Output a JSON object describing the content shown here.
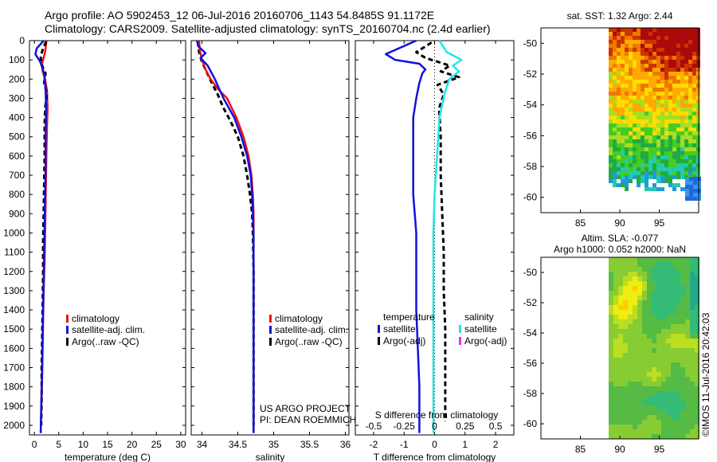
{
  "header": {
    "title_line1": "Argo profile: AO 5902453_12 06-Jul-2016 20160706_1143 54.8485S 91.1172E",
    "title_line2": "Climatology: CARS2009. Satellite-adjusted climatology: synTS_20160704.nc (2.4d earlier)"
  },
  "credit": {
    "project_line1": "US ARGO PROJECT",
    "project_line2": "PI: DEAN ROEMMICH",
    "stamp": "©IMOS 11-Jul-2016 20:42:03"
  },
  "colors": {
    "climatology": "#ee1111",
    "satellite": "#1111dd",
    "argo": "#000000",
    "salinity_sat": "#22e5e5",
    "salinity_argo": "#ff22ff"
  },
  "chart_data": [
    {
      "id": "temperature",
      "type": "line",
      "xlabel": "temperature (deg C)",
      "ylabel": "",
      "xlim": [
        -1,
        31
      ],
      "ylim": [
        2050,
        0
      ],
      "xticks": [
        0,
        5,
        10,
        15,
        20,
        25,
        30
      ],
      "xtick_labels": [
        "0",
        "5",
        "10",
        "15",
        "20",
        "25",
        "30"
      ],
      "yticks": [
        0,
        100,
        200,
        300,
        400,
        500,
        600,
        700,
        800,
        900,
        1000,
        1100,
        1200,
        1300,
        1400,
        1500,
        1600,
        1700,
        1800,
        1900,
        2000
      ],
      "ytick_labels": [
        "0",
        "100",
        "200",
        "300",
        "400",
        "500",
        "600",
        "700",
        "800",
        "900",
        "1000",
        "1100",
        "1200",
        "1300",
        "1400",
        "1500",
        "1600",
        "1700",
        "1800",
        "1900",
        "2000"
      ],
      "legend": [
        "climatology",
        "satellite-adj. clim.",
        "Argo(..raw -QC)"
      ],
      "series": [
        {
          "name": "climatology",
          "style": "solid",
          "color_key": "climatology",
          "x": [
            2.5,
            2.2,
            1.6,
            1.7,
            2.2,
            2.6,
            2.7,
            2.6,
            2.5,
            2.4,
            2.3,
            2.2,
            2.1,
            1.9,
            1.8,
            1.7,
            1.6,
            1.5,
            1.4,
            1.3
          ],
          "y": [
            0,
            60,
            120,
            160,
            200,
            260,
            350,
            450,
            550,
            700,
            850,
            1000,
            1150,
            1300,
            1450,
            1600,
            1750,
            1850,
            1950,
            2040
          ]
        },
        {
          "name": "satellite-adj. clim.",
          "style": "solid",
          "color_key": "satellite",
          "x": [
            1.9,
            0.5,
            0.2,
            1.2,
            2.0,
            2.3,
            2.4,
            2.3,
            2.3,
            2.2,
            2.1,
            2.0,
            1.9,
            1.8,
            1.7,
            1.6,
            1.5,
            1.4,
            1.3
          ],
          "y": [
            0,
            40,
            70,
            110,
            170,
            250,
            350,
            500,
            650,
            800,
            950,
            1100,
            1250,
            1400,
            1550,
            1700,
            1800,
            1900,
            2040
          ]
        },
        {
          "name": "Argo(..raw -QC)",
          "style": "dashed",
          "color_key": "argo",
          "x": [
            2.4,
            1.8,
            1.3,
            1.4,
            2.3,
            2.0,
            2.6,
            2.2,
            2.1,
            2.1,
            2.0,
            1.9,
            1.8,
            1.8,
            1.7,
            1.6,
            1.5,
            1.5,
            1.4
          ],
          "y": [
            5,
            40,
            80,
            120,
            170,
            220,
            280,
            350,
            450,
            600,
            750,
            900,
            1050,
            1200,
            1400,
            1550,
            1700,
            1850,
            2000
          ]
        }
      ]
    },
    {
      "id": "salinity",
      "type": "line",
      "xlabel": "salinity",
      "xlim": [
        33.85,
        36.05
      ],
      "ylim": [
        2050,
        0
      ],
      "xticks": [
        34,
        34.5,
        35,
        35.5,
        36
      ],
      "xtick_labels": [
        "34",
        "34.5",
        "35",
        "35.5",
        "36"
      ],
      "legend": [
        "climatology",
        "satellite-adj. clim.",
        "Argo(..raw -QC)"
      ],
      "series": [
        {
          "name": "climatology",
          "style": "solid",
          "color_key": "climatology",
          "x": [
            33.96,
            33.97,
            34.0,
            34.05,
            34.12,
            34.22,
            34.35,
            34.48,
            34.58,
            34.65,
            34.69,
            34.71,
            34.72,
            34.72,
            34.72,
            34.72,
            34.72
          ],
          "y": [
            0,
            50,
            100,
            150,
            200,
            250,
            300,
            400,
            500,
            600,
            700,
            800,
            900,
            1000,
            1200,
            1600,
            2040
          ]
        },
        {
          "name": "satellite-adj. clim.",
          "style": "solid",
          "color_key": "satellite",
          "x": [
            33.93,
            33.95,
            34.05,
            33.98,
            34.08,
            34.18,
            34.3,
            34.45,
            34.55,
            34.63,
            34.68,
            34.7,
            34.71,
            34.72,
            34.72,
            34.72,
            34.72
          ],
          "y": [
            0,
            30,
            65,
            90,
            130,
            200,
            300,
            400,
            500,
            600,
            700,
            800,
            900,
            1000,
            1200,
            1600,
            2040
          ]
        },
        {
          "name": "Argo(..raw -QC)",
          "style": "dashed",
          "color_key": "argo",
          "x": [
            33.94,
            33.96,
            34.0,
            34.05,
            34.1,
            34.15,
            34.22,
            34.3,
            34.4,
            34.5,
            34.58,
            34.63,
            34.67,
            34.7,
            34.71,
            34.72,
            34.72,
            34.72
          ],
          "y": [
            5,
            60,
            110,
            150,
            190,
            230,
            280,
            350,
            420,
            500,
            600,
            700,
            800,
            900,
            1000,
            1200,
            1600,
            2000
          ]
        }
      ]
    },
    {
      "id": "difference",
      "type": "line",
      "xlabel": "T difference from climatology",
      "x2label": "S difference from climatology",
      "xlim": [
        -2.6,
        2.6
      ],
      "ylim": [
        2050,
        0
      ],
      "xticks": [
        -2,
        -1,
        0,
        1,
        2
      ],
      "xtick_labels": [
        "-2",
        "-1",
        "0",
        "1",
        "2"
      ],
      "x2ticks": [
        -0.5,
        -0.25,
        0,
        0.25,
        0.5
      ],
      "x2tick_labels": [
        "-0.5",
        "-0.25",
        "0",
        "0.25",
        "0.5"
      ],
      "legend_titles": [
        "temperature",
        "salinity"
      ],
      "legend_temperature": [
        "satellite",
        "Argo(-adj)"
      ],
      "legend_salinity": [
        "satellite",
        "Argo(-adj)"
      ],
      "series": [
        {
          "name": "T satellite",
          "style": "solid",
          "color_key": "satellite",
          "x": [
            -0.6,
            -1.6,
            -1.3,
            -0.5,
            -0.3,
            -0.4,
            -0.5,
            -0.6,
            -0.7,
            -0.7,
            -0.7,
            -0.6,
            -0.6,
            -0.6,
            -0.55,
            -0.5,
            -0.5,
            -0.5
          ],
          "y": [
            0,
            70,
            100,
            120,
            150,
            170,
            220,
            300,
            400,
            600,
            800,
            1000,
            1200,
            1400,
            1600,
            1800,
            1900,
            2040
          ]
        },
        {
          "name": "T Argo(-adj)",
          "style": "dashed",
          "color_key": "argo",
          "x": [
            -0.1,
            -0.6,
            -0.3,
            0.5,
            0.2,
            0.8,
            0.1,
            0.3,
            0.15,
            0.2,
            0.2,
            0.25,
            0.3,
            0.3,
            0.35,
            0.35,
            0.35,
            0.35
          ],
          "y": [
            10,
            60,
            90,
            130,
            160,
            190,
            230,
            280,
            350,
            500,
            700,
            900,
            1100,
            1300,
            1500,
            1700,
            1850,
            1980
          ]
        },
        {
          "name": "S satellite",
          "style": "solid",
          "color_key": "salinity_sat",
          "x": [
            0.04,
            0.1,
            0.22,
            0.15,
            0.2,
            0.12,
            0.08,
            0.04,
            0.02,
            0.0,
            -0.01,
            -0.01,
            -0.01,
            -0.01,
            -0.01
          ],
          "y": [
            0,
            60,
            100,
            130,
            160,
            200,
            280,
            400,
            600,
            800,
            1000,
            1200,
            1400,
            1700,
            2040
          ]
        }
      ]
    },
    {
      "id": "sst-map",
      "type": "heatmap",
      "title": "sat. SST: 1.32 Argo: 2.44",
      "xlim": [
        80,
        100
      ],
      "ylim": [
        -61,
        -49
      ],
      "xticks": [
        85,
        90,
        95
      ],
      "xtick_labels": [
        "85",
        "90",
        "95"
      ],
      "yticks": [
        -50,
        -52,
        -54,
        -56,
        -58,
        -60
      ],
      "ytick_labels": [
        "-50",
        "-52",
        "-54",
        "-56",
        "-58",
        "-60"
      ]
    },
    {
      "id": "sla-map",
      "type": "heatmap",
      "title_line1": "Altim. SLA: -0.077",
      "title_line2": "Argo h1000: 0.052 h2000: NaN",
      "xlim": [
        80,
        100
      ],
      "ylim": [
        -61,
        -49
      ],
      "xticks": [
        85,
        90,
        95
      ],
      "xtick_labels": [
        "85",
        "90",
        "95"
      ],
      "yticks": [
        -50,
        -52,
        -54,
        -56,
        -58,
        -60
      ],
      "ytick_labels": [
        "-50",
        "-52",
        "-54",
        "-56",
        "-58",
        "-60"
      ]
    }
  ]
}
